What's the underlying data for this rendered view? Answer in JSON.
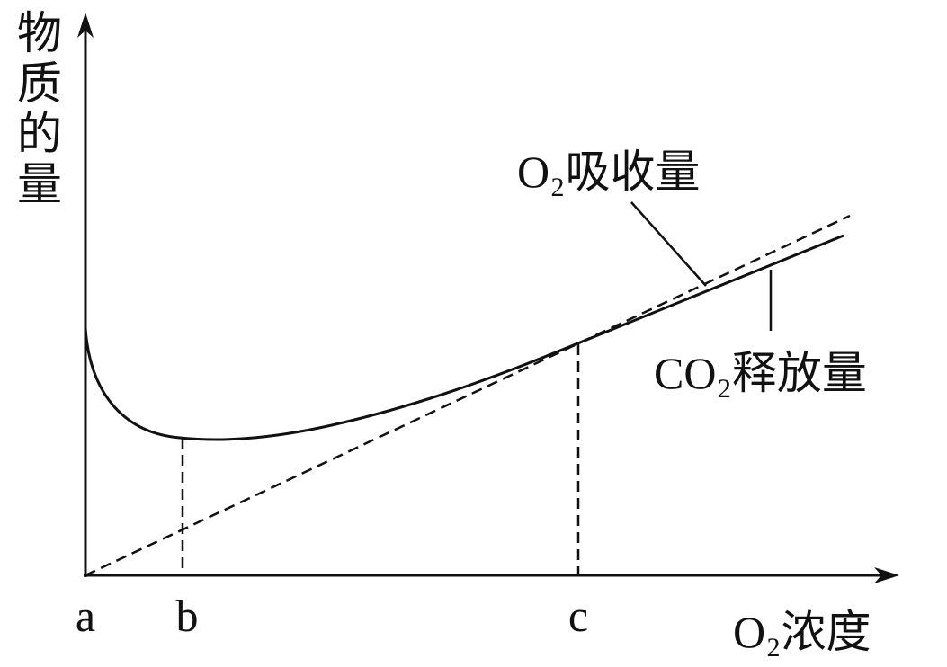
{
  "y_axis": {
    "label": "物质的量"
  },
  "x_axis": {
    "label": "O₂浓度",
    "points": [
      "a",
      "b",
      "c"
    ]
  },
  "curves": {
    "o2_uptake": "O₂吸收量",
    "co2_release": "CO₂释放量"
  }
}
